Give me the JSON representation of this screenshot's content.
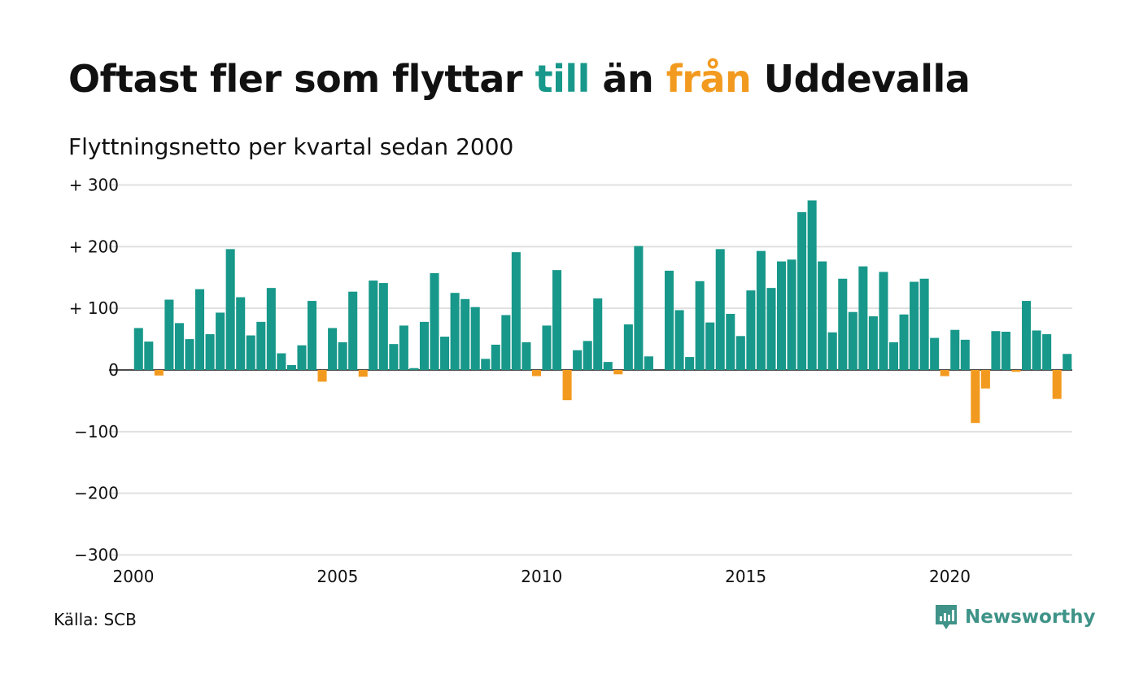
{
  "header": {
    "title_parts": [
      "Oftast fler som flyttar ",
      "till",
      " än ",
      "från",
      " Uddevalla"
    ],
    "subtitle": "Flyttningsnetto per kvartal sedan 2000"
  },
  "footer": {
    "source": "Källa: SCB",
    "brand": "Newsworthy",
    "brand_icon": "newsworthy-logo-icon"
  },
  "colors": {
    "positive": "#17988a",
    "negative": "#f29a1f",
    "text": "#111111",
    "grid": "#e0e0e0",
    "brand": "#3f9388"
  },
  "chart_data": {
    "type": "bar",
    "title": "Oftast fler som flyttar till än från Uddevalla",
    "subtitle": "Flyttningsnetto per kvartal sedan 2000",
    "x_ticks": [
      {
        "year": 2000,
        "label": "2000"
      },
      {
        "year": 2005,
        "label": "2005"
      },
      {
        "year": 2010,
        "label": "2010"
      },
      {
        "year": 2015,
        "label": "2015"
      },
      {
        "year": 2020,
        "label": "2020"
      }
    ],
    "y_ticks": [
      {
        "value": 300,
        "label": "+ 300"
      },
      {
        "value": 200,
        "label": "+ 200"
      },
      {
        "value": 100,
        "label": "+ 100"
      },
      {
        "value": 0,
        "label": "0"
      },
      {
        "value": -100,
        "label": "−100"
      },
      {
        "value": -200,
        "label": "−200"
      },
      {
        "value": -300,
        "label": "−300"
      }
    ],
    "ylim": [
      -300,
      300
    ],
    "xlim": [
      2000,
      2023
    ],
    "grid": true,
    "start_year": 2000,
    "start_quarter": 1,
    "values": [
      68,
      46,
      -9,
      114,
      76,
      50,
      131,
      58,
      93,
      196,
      118,
      56,
      78,
      133,
      27,
      8,
      40,
      112,
      -19,
      68,
      45,
      127,
      -11,
      145,
      141,
      42,
      72,
      3,
      78,
      157,
      54,
      125,
      115,
      102,
      18,
      41,
      89,
      191,
      45,
      -10,
      72,
      162,
      -49,
      32,
      47,
      116,
      13,
      -7,
      74,
      201,
      22,
      0,
      161,
      97,
      21,
      144,
      77,
      196,
      91,
      55,
      129,
      193,
      133,
      176,
      179,
      256,
      275,
      176,
      61,
      148,
      94,
      168,
      87,
      159,
      45,
      90,
      143,
      148,
      52,
      -10,
      65,
      49,
      -86,
      -30,
      63,
      62,
      -3,
      112,
      64,
      58,
      -47,
      26
    ]
  }
}
